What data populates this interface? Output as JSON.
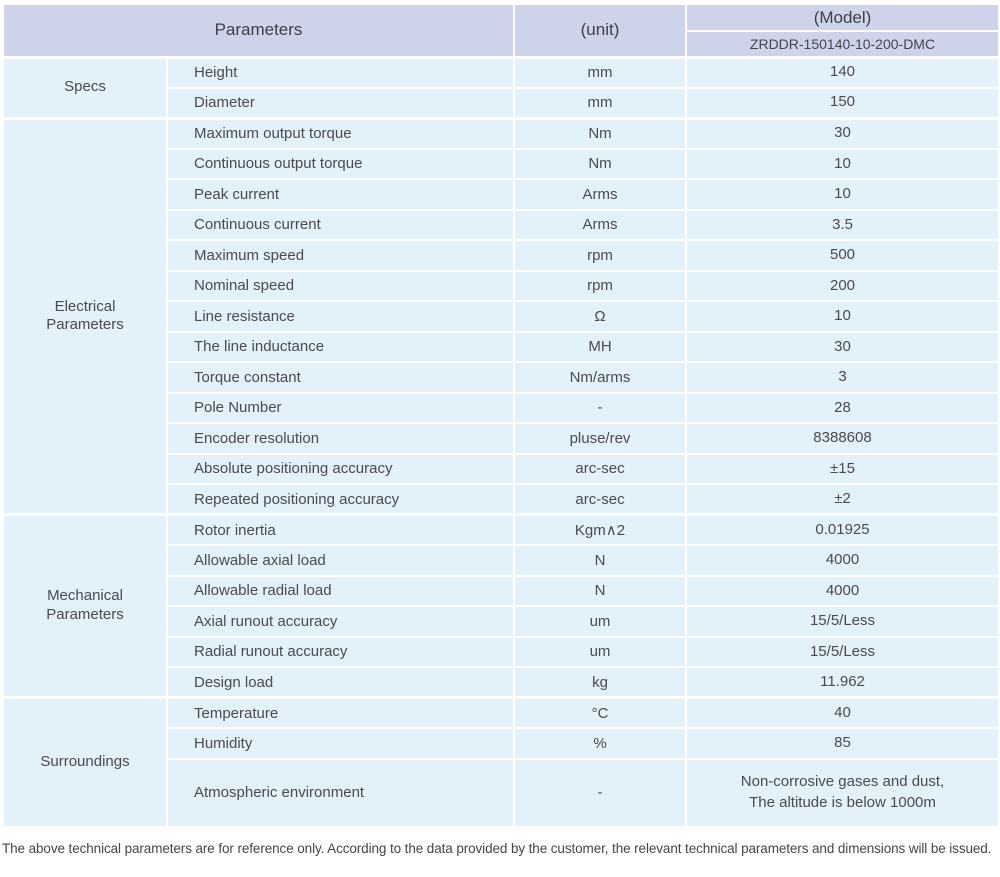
{
  "header": {
    "parameters_label": "Parameters",
    "unit_label": "(unit)",
    "model_label": "(Model)",
    "model_value": "ZRDDR-150140-10-200-DMC"
  },
  "sections": [
    {
      "name": "Specs",
      "rows": [
        [
          "Height",
          "mm",
          "140"
        ],
        [
          "Diameter",
          "mm",
          "150"
        ]
      ]
    },
    {
      "name": "Electrical\nParameters",
      "rows": [
        [
          "Maximum output torque",
          "Nm",
          "30"
        ],
        [
          "Continuous output torque",
          "Nm",
          "10"
        ],
        [
          "Peak current",
          "Arms",
          "10"
        ],
        [
          "Continuous current",
          "Arms",
          "3.5"
        ],
        [
          "Maximum speed",
          "rpm",
          "500"
        ],
        [
          "Nominal speed",
          "rpm",
          "200"
        ],
        [
          "Line resistance",
          "Ω",
          "10"
        ],
        [
          "The line inductance",
          "MH",
          "30"
        ],
        [
          "Torque constant",
          "Nm/arms",
          "3"
        ],
        [
          "Pole Number",
          "-",
          "28"
        ],
        [
          "Encoder resolution",
          "pluse/rev",
          "8388608"
        ],
        [
          "Absolute positioning accuracy",
          "arc-sec",
          "±15"
        ],
        [
          "Repeated positioning accuracy",
          "arc-sec",
          "±2"
        ]
      ]
    },
    {
      "name": "Mechanical\nParameters",
      "rows": [
        [
          "Rotor inertia",
          "Kgm∧2",
          "0.01925"
        ],
        [
          "Allowable axial load",
          "N",
          "4000"
        ],
        [
          "Allowable radial load",
          "N",
          "4000"
        ],
        [
          "Axial runout accuracy",
          "um",
          "15/5/Less"
        ],
        [
          "Radial runout accuracy",
          "um",
          "15/5/Less"
        ],
        [
          "Design load",
          "kg",
          "11.962"
        ]
      ]
    },
    {
      "name": "Surroundings",
      "rows": [
        [
          "Temperature",
          "°C",
          "40"
        ],
        [
          "Humidity",
          "%",
          "85"
        ],
        [
          "Atmospheric environment",
          "-",
          "Non-corrosive gases and dust,\nThe altitude is below 1000m"
        ]
      ]
    }
  ],
  "footer_note": "The above technical parameters are for reference only. According to the data provided by the customer, the relevant technical parameters and dimensions will be issued.",
  "colors": {
    "header_bg": "#cdd4e9",
    "row_bg": "#e3f1fb",
    "divider": "#ffffff",
    "header_text": "#3f3f47",
    "body_text": "#4a4a51"
  }
}
